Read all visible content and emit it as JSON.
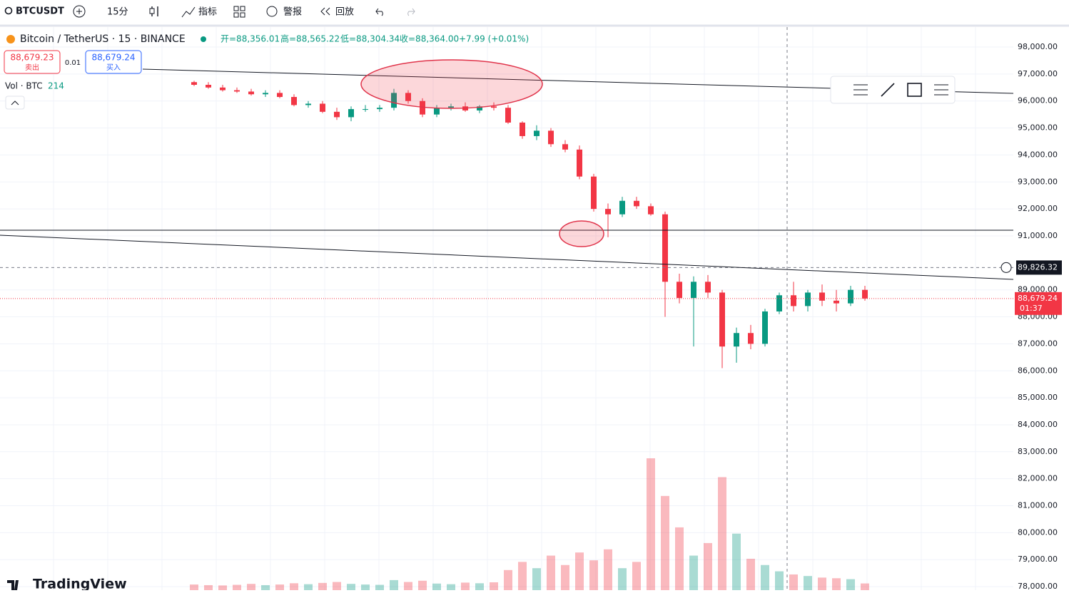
{
  "toolbar": {
    "symbol": "BTCUSDT",
    "interval": "15分",
    "indicators": "指标",
    "alerts": "警报",
    "replay": "回放"
  },
  "legend": {
    "title": "Bitcoin / TetherUS · 15 · BINANCE",
    "open": "开=88,356.01",
    "high": "高=88,565.22",
    "low": "低=88,304.34",
    "close": "收=88,364.00",
    "change": "+7.99 (+0.01%)"
  },
  "trade": {
    "sell_price": "88,679.23",
    "sell": "卖出",
    "spread": "0.01",
    "buy_price": "88,679.24",
    "buy": "买入"
  },
  "volume_legend": {
    "label": "Vol · BTC",
    "value": 214
  },
  "brand": "TradingView",
  "chart_data": {
    "type": "candlestick",
    "up_color": "#089981",
    "down_color": "#f23645",
    "ylim": [
      77870,
      98740
    ],
    "yticks": [
      {
        "value": 78000,
        "label": "78,000.00"
      },
      {
        "value": 79000,
        "label": "79,000.00"
      },
      {
        "value": 80000,
        "label": "80,000.00"
      },
      {
        "value": 81000,
        "label": "81,000.00"
      },
      {
        "value": 82000,
        "label": "82,000.00"
      },
      {
        "value": 83000,
        "label": "83,000.00"
      },
      {
        "value": 84000,
        "label": "84,000.00"
      },
      {
        "value": 85000,
        "label": "85,000.00"
      },
      {
        "value": 86000,
        "label": "86,000.00"
      },
      {
        "value": 87000,
        "label": "87,000.00"
      },
      {
        "value": 88000,
        "label": "88,000.00"
      },
      {
        "value": 89000,
        "label": "89,000.00"
      },
      {
        "value": 91000,
        "label": "91,000.00"
      },
      {
        "value": 92000,
        "label": "92,000.00"
      },
      {
        "value": 93000,
        "label": "93,000.00"
      },
      {
        "value": 94000,
        "label": "94,000.00"
      },
      {
        "value": 95000,
        "label": "95,000.00"
      },
      {
        "value": 96000,
        "label": "96,000.00"
      },
      {
        "value": 97000,
        "label": "97,000.00"
      },
      {
        "value": 98000,
        "label": "98,000.00"
      }
    ],
    "grid": true,
    "crosshair": {
      "value": 89826.32,
      "label": "89,826.32"
    },
    "last_price": {
      "value": 88679.24,
      "label": "88,679.24",
      "countdown": "01:37"
    },
    "open": [
      96700,
      96600,
      96500,
      96400,
      96350,
      96250,
      96300,
      96150,
      95850,
      95900,
      95600,
      95400,
      95700,
      95700,
      95750,
      96300,
      96000,
      95500,
      95750,
      95800,
      95650,
      95800,
      95750,
      95200,
      94700,
      94900,
      94400,
      94200,
      93200,
      92000,
      91800,
      92300,
      92100,
      91800,
      89300,
      88700,
      89300,
      88900,
      86900,
      87400,
      87000,
      88200,
      88800,
      88400,
      88900,
      88600,
      88500,
      89000
    ],
    "high": [
      96750,
      96700,
      96600,
      96500,
      96450,
      96400,
      96400,
      96250,
      96000,
      96000,
      95750,
      95800,
      95850,
      95850,
      96450,
      96400,
      96100,
      95850,
      95900,
      95950,
      95850,
      95950,
      95850,
      95250,
      95100,
      95000,
      94550,
      94350,
      93300,
      92200,
      92450,
      92450,
      92200,
      91900,
      89600,
      89500,
      89550,
      89000,
      87600,
      87700,
      88300,
      88900,
      89300,
      89000,
      89200,
      89000,
      89150,
      89150
    ],
    "low": [
      96550,
      96450,
      96350,
      96300,
      96200,
      96150,
      96100,
      95800,
      95750,
      95550,
      95300,
      95250,
      95600,
      95600,
      95650,
      95900,
      95400,
      95400,
      95650,
      95600,
      95550,
      95650,
      95150,
      94600,
      94550,
      94300,
      94100,
      93100,
      91900,
      90950,
      91700,
      92000,
      91750,
      88000,
      88500,
      86900,
      88700,
      86100,
      86300,
      86800,
      86900,
      88100,
      88200,
      88200,
      88400,
      88200,
      88400,
      88600
    ],
    "close": [
      96600,
      96500,
      96400,
      96350,
      96250,
      96300,
      96150,
      95850,
      95900,
      95600,
      95400,
      95700,
      95700,
      95750,
      96300,
      96000,
      95500,
      95750,
      95800,
      95650,
      95800,
      95750,
      95200,
      94700,
      94900,
      94400,
      94200,
      93200,
      92000,
      91800,
      92300,
      92100,
      91800,
      89300,
      88700,
      89300,
      88900,
      86900,
      87400,
      87000,
      88200,
      88800,
      88400,
      88900,
      88600,
      88500,
      89000,
      88680
    ],
    "volume": [
      180,
      160,
      150,
      170,
      200,
      160,
      180,
      220,
      190,
      230,
      260,
      200,
      180,
      170,
      320,
      260,
      300,
      210,
      190,
      240,
      220,
      250,
      640,
      900,
      700,
      1100,
      800,
      1200,
      950,
      1300,
      700,
      900,
      4200,
      3000,
      2000,
      1100,
      1500,
      3600,
      1800,
      1000,
      800,
      600,
      500,
      450,
      400,
      380,
      350,
      214
    ]
  }
}
